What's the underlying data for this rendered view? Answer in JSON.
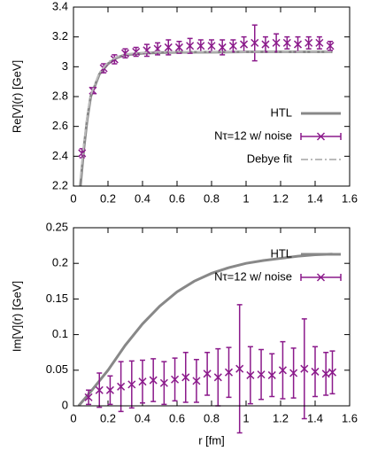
{
  "chart_data": [
    {
      "type": "line",
      "ylabel": "Re[V](r) [GeV]",
      "xlim": [
        0,
        1.6
      ],
      "xticks": [
        0,
        0.2,
        0.4,
        0.6,
        0.8,
        1,
        1.2,
        1.4,
        1.6
      ],
      "ylim": [
        2.2,
        3.4
      ],
      "yticks": [
        2.2,
        2.4,
        2.6,
        2.8,
        3,
        3.2,
        3.4
      ],
      "legend": "lower right",
      "series": [
        {
          "name": "HTL",
          "color": "#888888",
          "style": "solid",
          "x": [
            0.04,
            0.06,
            0.08,
            0.1,
            0.15,
            0.2,
            0.25,
            0.3,
            0.4,
            0.5,
            0.6,
            0.8,
            1.0,
            1.2,
            1.5
          ],
          "values": [
            2.2,
            2.45,
            2.65,
            2.8,
            2.95,
            3.02,
            3.06,
            3.08,
            3.09,
            3.095,
            3.097,
            3.098,
            3.1,
            3.1,
            3.1
          ]
        },
        {
          "name": "Nτ=12 w/ noise",
          "color": "#8b1a8b",
          "style": "errorbar",
          "x": [
            0.05,
            0.1125,
            0.175,
            0.2375,
            0.3,
            0.3625,
            0.425,
            0.4875,
            0.55,
            0.6125,
            0.675,
            0.7375,
            0.8,
            0.8625,
            0.925,
            0.9875,
            1.05,
            1.1125,
            1.175,
            1.2375,
            1.3,
            1.3625,
            1.425,
            1.4875
          ],
          "values": [
            2.42,
            2.84,
            2.99,
            3.05,
            3.09,
            3.1,
            3.11,
            3.12,
            3.13,
            3.13,
            3.14,
            3.14,
            3.14,
            3.13,
            3.14,
            3.15,
            3.16,
            3.15,
            3.16,
            3.16,
            3.15,
            3.16,
            3.16,
            3.14
          ],
          "errors": [
            0.03,
            0.02,
            0.03,
            0.03,
            0.03,
            0.03,
            0.04,
            0.04,
            0.05,
            0.04,
            0.05,
            0.04,
            0.04,
            0.05,
            0.04,
            0.05,
            0.12,
            0.05,
            0.06,
            0.04,
            0.05,
            0.04,
            0.04,
            0.03
          ]
        },
        {
          "name": "Debye fit",
          "color": "#bbbbbb",
          "style": "dashdot",
          "x": [
            0.04,
            0.06,
            0.08,
            0.1,
            0.15,
            0.2,
            0.25,
            0.3,
            0.4,
            0.5,
            0.6,
            0.8,
            1.0,
            1.2,
            1.5
          ],
          "values": [
            2.25,
            2.48,
            2.67,
            2.81,
            2.96,
            3.03,
            3.065,
            3.085,
            3.095,
            3.1,
            3.1,
            3.1,
            3.1,
            3.1,
            3.1
          ]
        }
      ]
    },
    {
      "type": "line",
      "ylabel": "Im[V](r) [GeV]",
      "xlabel": "r [fm]",
      "xlim": [
        0,
        1.6
      ],
      "xticks": [
        0,
        0.2,
        0.4,
        0.6,
        0.8,
        1,
        1.2,
        1.4,
        1.6
      ],
      "ylim": [
        0,
        0.25
      ],
      "yticks": [
        0,
        0.05,
        0.1,
        0.15,
        0.2,
        0.25
      ],
      "legend": "upper right",
      "series": [
        {
          "name": "HTL",
          "color": "#888888",
          "style": "solid",
          "x": [
            0.03,
            0.1,
            0.2,
            0.3,
            0.4,
            0.5,
            0.6,
            0.7,
            0.8,
            0.9,
            1.0,
            1.1,
            1.2,
            1.3,
            1.4,
            1.5
          ],
          "values": [
            0,
            0.02,
            0.05,
            0.085,
            0.115,
            0.14,
            0.16,
            0.175,
            0.186,
            0.194,
            0.2,
            0.204,
            0.207,
            0.21,
            0.212,
            0.213
          ]
        },
        {
          "name": "Nτ=12 w/ noise",
          "color": "#8b1a8b",
          "style": "errorbar",
          "x": [
            0.0875,
            0.15,
            0.2125,
            0.275,
            0.3375,
            0.4,
            0.4625,
            0.525,
            0.5875,
            0.65,
            0.7125,
            0.775,
            0.8375,
            0.9,
            0.9625,
            1.025,
            1.0875,
            1.15,
            1.2125,
            1.275,
            1.3375,
            1.4,
            1.4625,
            1.5
          ],
          "values": [
            0.012,
            0.022,
            0.022,
            0.027,
            0.03,
            0.034,
            0.036,
            0.032,
            0.037,
            0.04,
            0.035,
            0.045,
            0.04,
            0.047,
            0.052,
            0.043,
            0.044,
            0.043,
            0.05,
            0.046,
            0.052,
            0.048,
            0.045,
            0.047
          ],
          "errors": [
            0.01,
            0.024,
            0.02,
            0.035,
            0.033,
            0.03,
            0.03,
            0.03,
            0.03,
            0.035,
            0.03,
            0.03,
            0.04,
            0.035,
            0.09,
            0.04,
            0.035,
            0.03,
            0.04,
            0.035,
            0.07,
            0.035,
            0.03,
            0.03
          ]
        }
      ]
    }
  ]
}
